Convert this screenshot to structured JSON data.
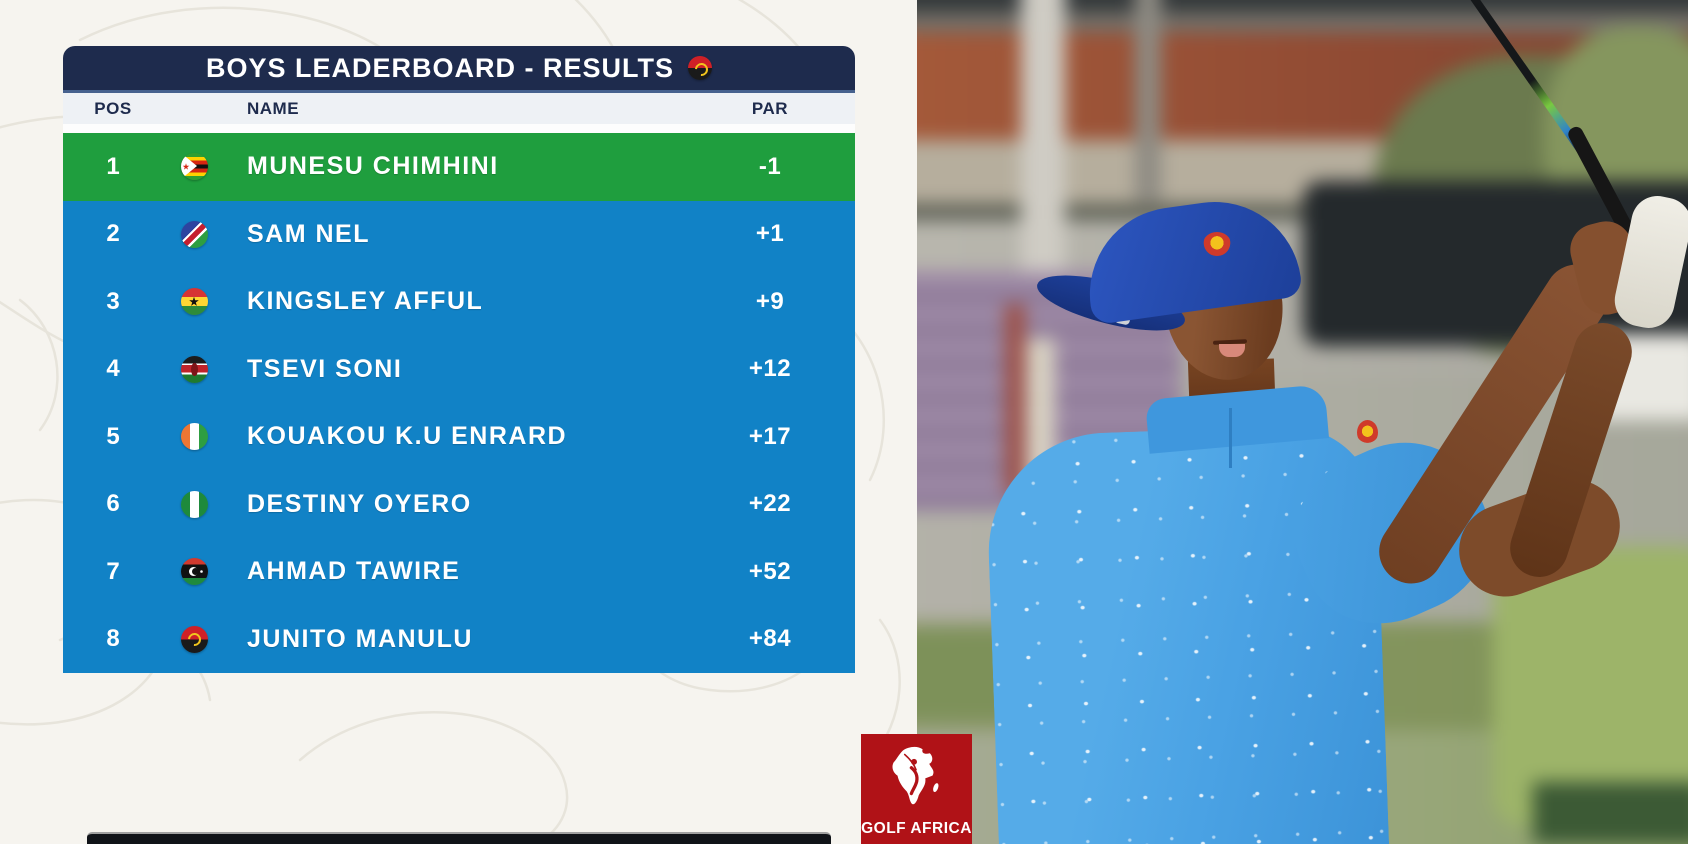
{
  "leaderboard": {
    "title": "BOYS LEADERBOARD - RESULTS",
    "title_flag_country": "angola",
    "header": {
      "pos": "POS",
      "name": "NAME",
      "par": "PAR"
    },
    "rows": [
      {
        "pos": "1",
        "country": "zimbabwe",
        "name": "MUNESU CHIMHINI",
        "par": "-1",
        "leader": true
      },
      {
        "pos": "2",
        "country": "namibia",
        "name": "SAM NEL",
        "par": "+1",
        "leader": false
      },
      {
        "pos": "3",
        "country": "ghana",
        "name": "KINGSLEY AFFUL",
        "par": "+9",
        "leader": false
      },
      {
        "pos": "4",
        "country": "kenya",
        "name": "TSEVI SONI",
        "par": "+12",
        "leader": false
      },
      {
        "pos": "5",
        "country": "cotedivoire",
        "name": "KOUAKOU K.U ENRARD",
        "par": "+17",
        "leader": false
      },
      {
        "pos": "6",
        "country": "nigeria",
        "name": "DESTINY OYERO",
        "par": "+22",
        "leader": false
      },
      {
        "pos": "7",
        "country": "libya",
        "name": "AHMAD TAWIRE",
        "par": "+52",
        "leader": false
      },
      {
        "pos": "8",
        "country": "angola",
        "name": "JUNITO MANULU",
        "par": "+84",
        "leader": false
      }
    ],
    "colors": {
      "titlebar_bg": "#1e2b4d",
      "divider": "#46618e",
      "column_row_bg": "#eef1f5",
      "leader_row_bg": "#1f9e3e",
      "row_bg": "#1182c6",
      "text": "#ffffff"
    }
  },
  "logo": {
    "label": "GOLF AFRICA",
    "icon": "africa-map-golfer-icon",
    "bg_color": "#b01217"
  },
  "photo": {
    "description": "Junior golfer in royal-blue cap and sky-blue patterned polo with white glove, finishing a golf swing in front of blurred course structures and trees",
    "cap_color": "#2d57c2",
    "shirt_color": "#4aa2e4"
  },
  "background": {
    "style": "off-white with faint topographic contour lines",
    "color": "#f6f4ef"
  },
  "bottom_bar": {
    "description": "top edge of next (cut-off) panel"
  }
}
